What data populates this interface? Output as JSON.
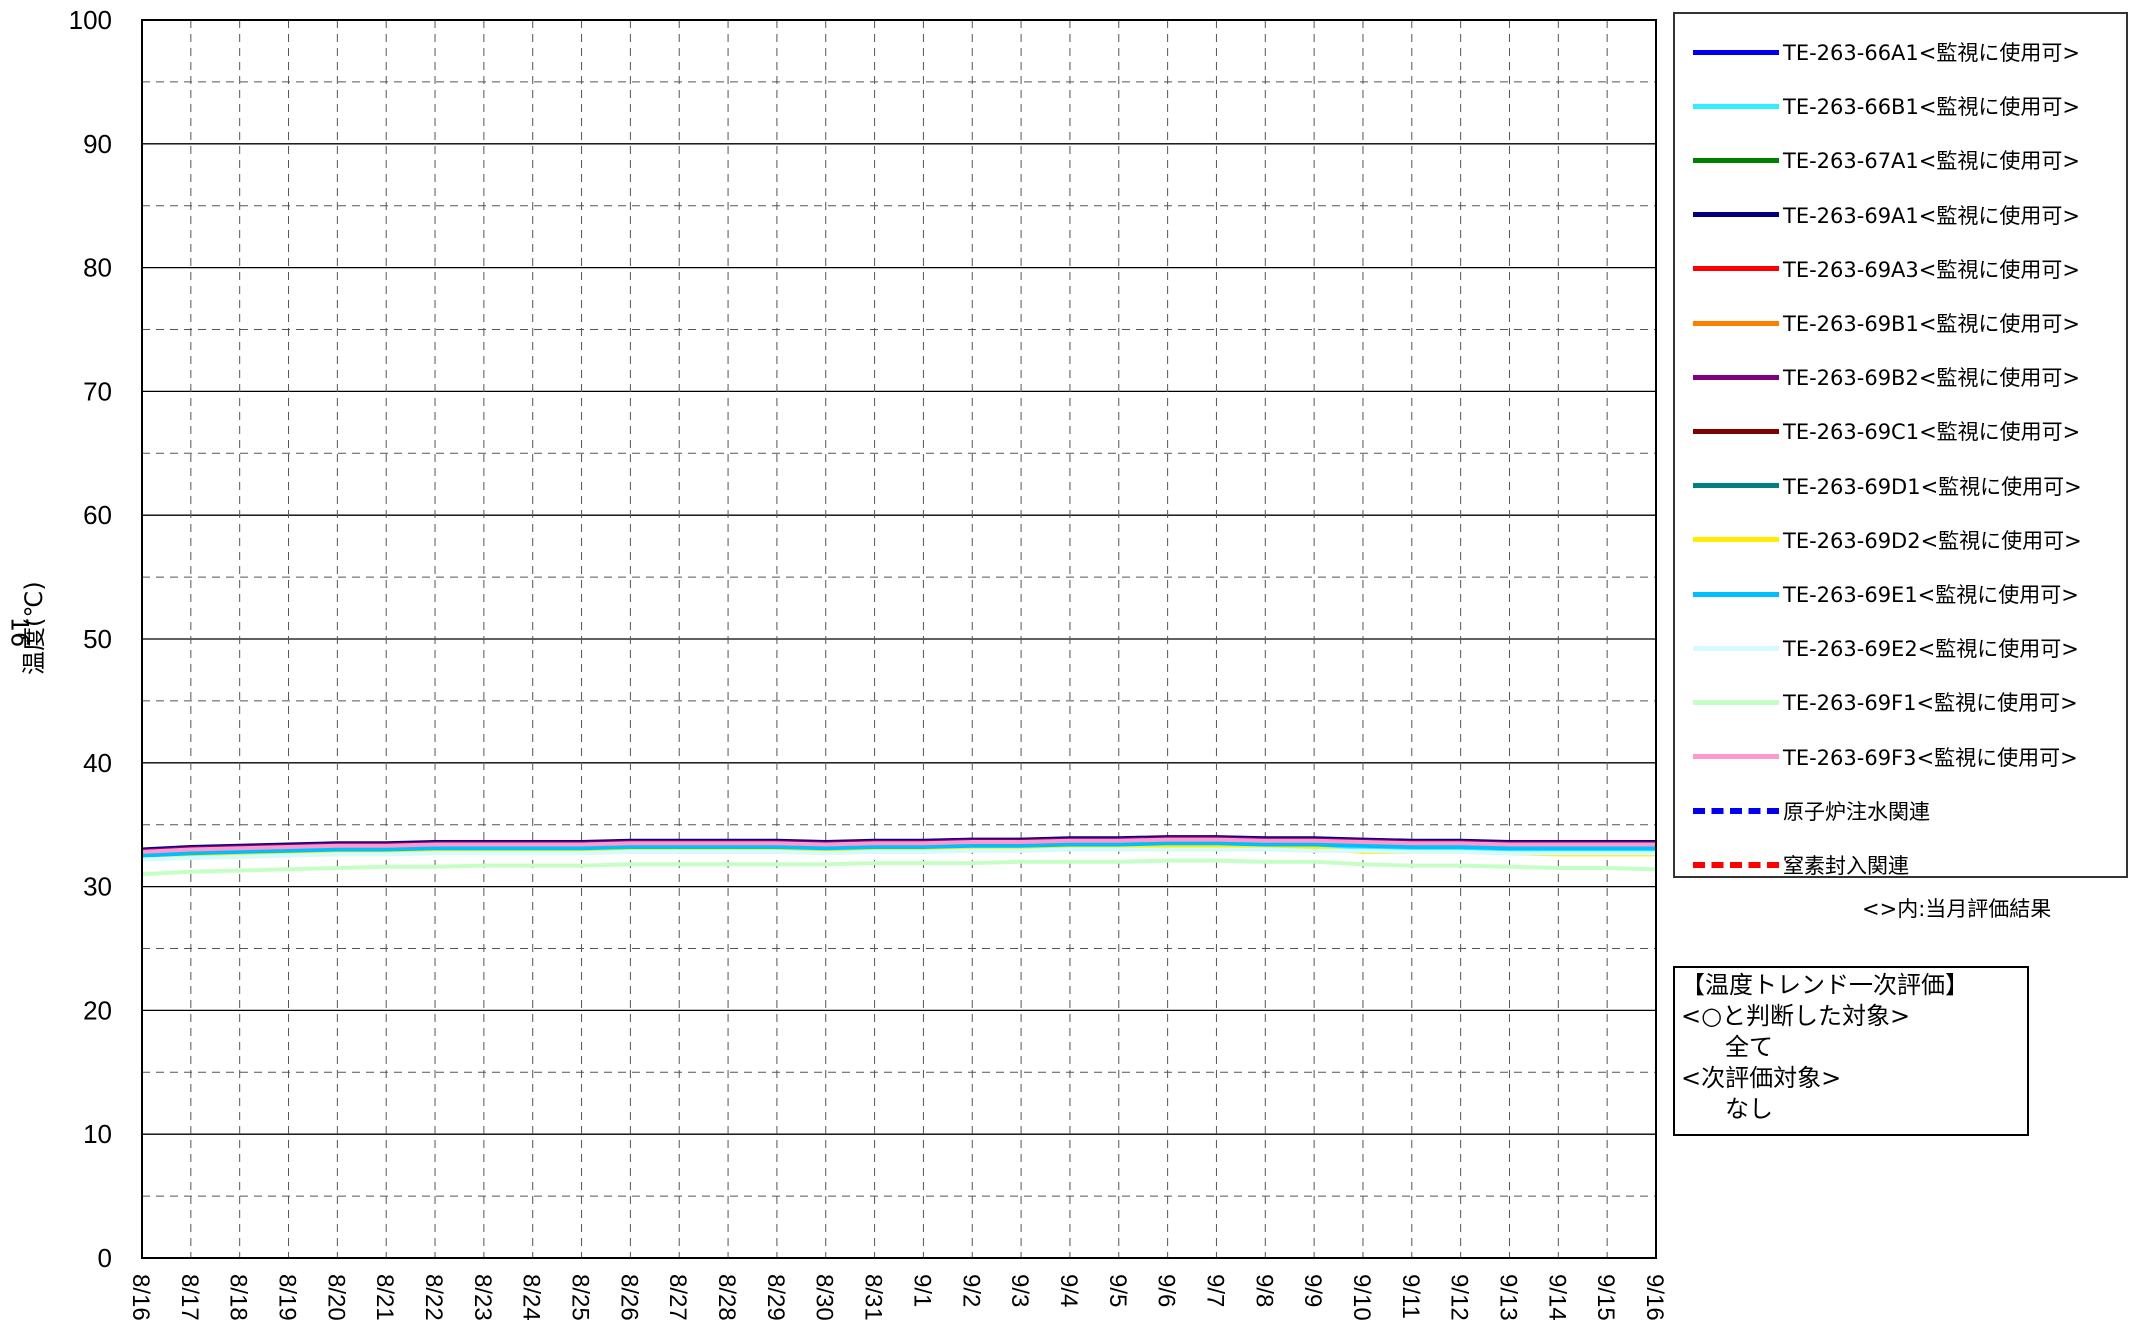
{
  "chart_data": {
    "type": "line",
    "ylabel": "温度(℃)",
    "corner_mark": "16",
    "ylim": [
      0,
      100
    ],
    "yticks": [
      "0",
      "10",
      "20",
      "30",
      "40",
      "50",
      "60",
      "70",
      "80",
      "90",
      "100"
    ],
    "x": [
      "8/16",
      "8/17",
      "8/18",
      "8/19",
      "8/20",
      "8/21",
      "8/22",
      "8/23",
      "8/24",
      "8/25",
      "8/26",
      "8/27",
      "8/28",
      "8/29",
      "8/30",
      "8/31",
      "9/1",
      "9/2",
      "9/3",
      "9/4",
      "9/5",
      "9/6",
      "9/7",
      "9/8",
      "9/9",
      "9/10",
      "9/11",
      "9/12",
      "9/13",
      "9/14",
      "9/15",
      "9/16"
    ],
    "grid": true,
    "legend_position": "right",
    "series": [
      {
        "name": "TE-263-66A1<監視に使用可>",
        "color": "#0000ee",
        "values": [
          32.9,
          33.1,
          33.2,
          33.3,
          33.4,
          33.4,
          33.5,
          33.5,
          33.5,
          33.5,
          33.6,
          33.6,
          33.6,
          33.6,
          33.6,
          33.6,
          33.6,
          33.7,
          33.7,
          33.8,
          33.8,
          33.9,
          33.9,
          33.8,
          33.8,
          33.7,
          33.6,
          33.6,
          33.5,
          33.5,
          33.5,
          33.5
        ]
      },
      {
        "name": "TE-263-66B1<監視に使用可>",
        "color": "#33eeff",
        "values": [
          32.4,
          32.5,
          32.6,
          32.7,
          32.8,
          32.8,
          32.9,
          32.9,
          32.9,
          33.0,
          33.0,
          33.0,
          33.0,
          33.0,
          33.0,
          33.0,
          33.0,
          33.1,
          33.1,
          33.1,
          33.2,
          33.2,
          33.2,
          33.2,
          33.1,
          33.1,
          33.0,
          33.0,
          33.0,
          32.9,
          32.9,
          32.9
        ]
      },
      {
        "name": "TE-263-67A1<監視に使用可>",
        "color": "#008000",
        "values": [
          32.8,
          33.0,
          33.1,
          33.2,
          33.3,
          33.3,
          33.4,
          33.4,
          33.4,
          33.4,
          33.5,
          33.5,
          33.5,
          33.5,
          33.5,
          33.5,
          33.5,
          33.6,
          33.6,
          33.7,
          33.7,
          33.8,
          33.8,
          33.7,
          33.7,
          33.6,
          33.5,
          33.5,
          33.4,
          33.4,
          33.4,
          33.4
        ]
      },
      {
        "name": "TE-263-69A1<監視に使用可>",
        "color": "#000080",
        "values": [
          33.0,
          33.2,
          33.3,
          33.4,
          33.5,
          33.5,
          33.6,
          33.6,
          33.6,
          33.6,
          33.7,
          33.7,
          33.7,
          33.7,
          33.6,
          33.7,
          33.7,
          33.8,
          33.8,
          33.9,
          33.9,
          34.0,
          34.0,
          33.9,
          33.9,
          33.8,
          33.7,
          33.7,
          33.6,
          33.6,
          33.6,
          33.6
        ]
      },
      {
        "name": "TE-263-69A3<監視に使用可>",
        "color": "#ff0000",
        "values": [
          32.7,
          32.9,
          33.0,
          33.1,
          33.2,
          33.2,
          33.3,
          33.3,
          33.3,
          33.3,
          33.4,
          33.4,
          33.4,
          33.4,
          33.4,
          33.4,
          33.4,
          33.5,
          33.5,
          33.6,
          33.6,
          33.7,
          33.7,
          33.6,
          33.6,
          33.5,
          33.4,
          33.4,
          33.3,
          33.3,
          33.3,
          33.3
        ]
      },
      {
        "name": "TE-263-69B1<監視に使用可>",
        "color": "#ff7f00",
        "values": [
          32.6,
          32.8,
          32.9,
          33.0,
          33.1,
          33.1,
          33.2,
          33.2,
          33.2,
          33.2,
          33.3,
          33.3,
          33.3,
          33.3,
          33.3,
          33.3,
          33.3,
          33.4,
          33.4,
          33.5,
          33.5,
          33.6,
          33.6,
          33.5,
          33.5,
          33.4,
          33.3,
          33.3,
          33.2,
          33.2,
          33.2,
          33.2
        ]
      },
      {
        "name": "TE-263-69B2<監視に使用可>",
        "color": "#800080",
        "values": [
          32.9,
          33.1,
          33.2,
          33.3,
          33.4,
          33.4,
          33.5,
          33.5,
          33.5,
          33.5,
          33.6,
          33.6,
          33.6,
          33.6,
          33.5,
          33.6,
          33.6,
          33.7,
          33.7,
          33.8,
          33.8,
          33.9,
          33.9,
          33.8,
          33.8,
          33.7,
          33.6,
          33.6,
          33.5,
          33.5,
          33.5,
          33.5
        ]
      },
      {
        "name": "TE-263-69C1<監視に使用可>",
        "color": "#800000",
        "values": [
          32.8,
          33.0,
          33.1,
          33.2,
          33.3,
          33.3,
          33.4,
          33.4,
          33.4,
          33.4,
          33.5,
          33.5,
          33.5,
          33.5,
          33.4,
          33.5,
          33.5,
          33.6,
          33.6,
          33.7,
          33.7,
          33.8,
          33.8,
          33.7,
          33.7,
          33.6,
          33.5,
          33.5,
          33.4,
          33.4,
          33.4,
          33.4
        ]
      },
      {
        "name": "TE-263-69D1<監視に使用可>",
        "color": "#008080",
        "values": [
          32.7,
          32.9,
          33.0,
          33.1,
          33.2,
          33.2,
          33.3,
          33.3,
          33.3,
          33.3,
          33.4,
          33.4,
          33.4,
          33.4,
          33.3,
          33.4,
          33.4,
          33.5,
          33.5,
          33.6,
          33.6,
          33.7,
          33.7,
          33.6,
          33.6,
          33.5,
          33.4,
          33.4,
          33.3,
          33.3,
          33.3,
          33.3
        ]
      },
      {
        "name": "TE-263-69D2<監視に使用可>",
        "color": "#ffee00",
        "values": [
          32.5,
          32.6,
          32.7,
          32.8,
          32.9,
          32.9,
          33.0,
          33.0,
          33.0,
          33.0,
          33.1,
          33.1,
          33.1,
          33.1,
          33.0,
          33.1,
          33.1,
          33.2,
          33.2,
          33.3,
          33.3,
          33.3,
          33.3,
          33.2,
          33.1,
          32.8,
          32.8,
          32.8,
          32.7,
          32.6,
          32.6,
          32.6
        ]
      },
      {
        "name": "TE-263-69E1<監視に使用可>",
        "color": "#00bfff",
        "values": [
          32.5,
          32.7,
          32.8,
          32.9,
          33.0,
          33.0,
          33.1,
          33.1,
          33.1,
          33.1,
          33.2,
          33.2,
          33.2,
          33.2,
          33.1,
          33.2,
          33.2,
          33.3,
          33.3,
          33.4,
          33.4,
          33.5,
          33.5,
          33.4,
          33.4,
          33.3,
          33.2,
          33.2,
          33.1,
          33.1,
          33.1,
          33.1
        ]
      },
      {
        "name": "TE-263-69E2<監視に使用可>",
        "color": "#d6faff",
        "values": [
          32.2,
          32.3,
          32.4,
          32.5,
          32.6,
          32.6,
          32.7,
          32.7,
          32.7,
          32.7,
          32.8,
          32.8,
          32.8,
          32.8,
          32.7,
          32.8,
          32.8,
          32.9,
          32.9,
          33.0,
          33.0,
          33.0,
          33.0,
          33.0,
          32.9,
          32.9,
          32.8,
          32.8,
          32.7,
          32.7,
          32.7,
          32.7
        ]
      },
      {
        "name": "TE-263-69F1<監視に使用可>",
        "color": "#c6ffc6",
        "values": [
          31.0,
          31.2,
          31.3,
          31.4,
          31.5,
          31.6,
          31.6,
          31.7,
          31.7,
          31.7,
          31.8,
          31.8,
          31.8,
          31.8,
          31.8,
          31.9,
          31.9,
          31.9,
          32.0,
          32.0,
          32.0,
          32.1,
          32.1,
          32.0,
          32.0,
          31.8,
          31.7,
          31.7,
          31.6,
          31.5,
          31.5,
          31.4
        ]
      },
      {
        "name": "TE-263-69F3<監視に使用可>",
        "color": "#ff99cc",
        "values": [
          32.8,
          33.0,
          33.1,
          33.2,
          33.3,
          33.3,
          33.4,
          33.4,
          33.4,
          33.4,
          33.5,
          33.5,
          33.5,
          33.5,
          33.4,
          33.5,
          33.5,
          33.6,
          33.6,
          33.7,
          33.7,
          33.8,
          33.8,
          33.7,
          33.7,
          33.6,
          33.5,
          33.5,
          33.4,
          33.4,
          33.4,
          33.4
        ]
      }
    ]
  },
  "legend": {
    "items": [
      {
        "label": "TE-263-66A1<監視に使用可>",
        "color": "#0000ee",
        "dash": false
      },
      {
        "label": "TE-263-66B1<監視に使用可>",
        "color": "#33eeff",
        "dash": false
      },
      {
        "label": "TE-263-67A1<監視に使用可>",
        "color": "#008000",
        "dash": false
      },
      {
        "label": "TE-263-69A1<監視に使用可>",
        "color": "#000080",
        "dash": false
      },
      {
        "label": "TE-263-69A3<監視に使用可>",
        "color": "#ff0000",
        "dash": false
      },
      {
        "label": "TE-263-69B1<監視に使用可>",
        "color": "#ff7f00",
        "dash": false
      },
      {
        "label": "TE-263-69B2<監視に使用可>",
        "color": "#800080",
        "dash": false
      },
      {
        "label": "TE-263-69C1<監視に使用可>",
        "color": "#800000",
        "dash": false
      },
      {
        "label": "TE-263-69D1<監視に使用可>",
        "color": "#008080",
        "dash": false
      },
      {
        "label": "TE-263-69D2<監視に使用可>",
        "color": "#ffee00",
        "dash": false
      },
      {
        "label": "TE-263-69E1<監視に使用可>",
        "color": "#00bfff",
        "dash": false
      },
      {
        "label": "TE-263-69E2<監視に使用可>",
        "color": "#d6faff",
        "dash": false
      },
      {
        "label": "TE-263-69F1<監視に使用可>",
        "color": "#c6ffc6",
        "dash": false
      },
      {
        "label": "TE-263-69F3<監視に使用可>",
        "color": "#ff99cc",
        "dash": false
      },
      {
        "label": "原子炉注水関連",
        "color": "#0000ee",
        "dash": true
      },
      {
        "label": "窒素封入関連",
        "color": "#ff0000",
        "dash": true
      }
    ]
  },
  "note": "<>内:当月評価結果",
  "evaluation": {
    "title": "【温度トレンド一次評価】",
    "ok_header": "<○と判断した対象>",
    "ok_value": "全て",
    "next_header": "<次評価対象>",
    "next_value": "なし"
  }
}
